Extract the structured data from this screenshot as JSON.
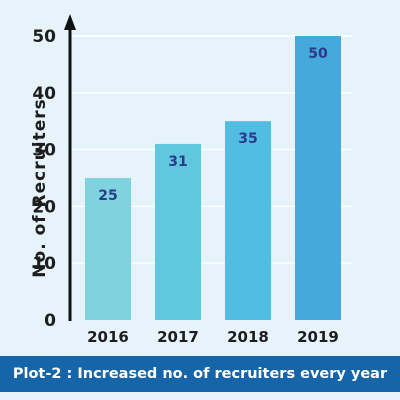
{
  "chart_data": {
    "type": "bar",
    "categories": [
      "2016",
      "2017",
      "2018",
      "2019"
    ],
    "values": [
      25,
      31,
      35,
      50
    ],
    "data_labels": [
      "25",
      "31",
      "35",
      "50"
    ],
    "ylabel": "No. of Recruiters",
    "xlabel": "",
    "ylim": [
      0,
      50
    ],
    "yticks": [
      0,
      10,
      20,
      30,
      40,
      50
    ],
    "ytick_labels": [
      "0",
      "10",
      "20",
      "30",
      "40",
      "50"
    ],
    "grid": true,
    "legend": "none",
    "bar_colors": [
      "#7fd3de",
      "#61c7df",
      "#52bde3",
      "#45a9dd"
    ],
    "data_label_color": "#2a3b8c",
    "axis_color": "#111111",
    "background_color": "#e6f3fb"
  },
  "caption": {
    "text": "Plot-2 : Increased no. of recruiters every year",
    "background_color": "#1565a8"
  }
}
